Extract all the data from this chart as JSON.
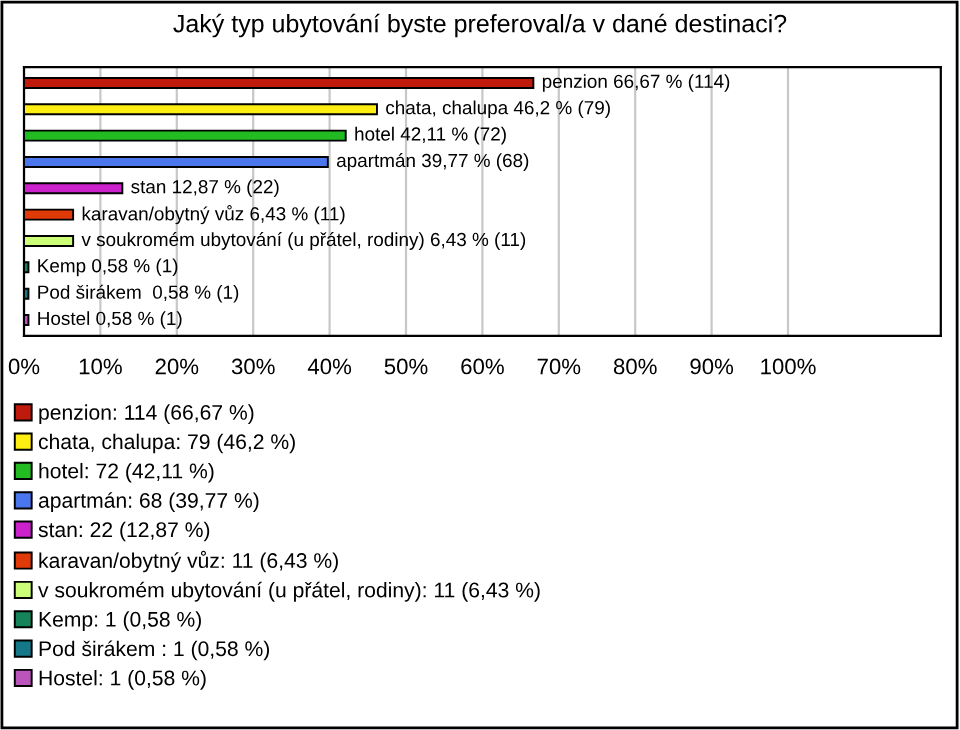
{
  "chart_data": {
    "type": "bar",
    "orientation": "horizontal",
    "title": "Jaký typ ubytování byste preferoval/a v dané destinaci?",
    "categories": [
      null,
      null,
      null,
      null,
      null,
      null,
      null,
      null,
      null,
      null
    ],
    "series": [
      {
        "name": "penzion: 114 (66,67 %)",
        "color": "#c01a0c",
        "values": [
          66.67,
          null,
          null,
          null,
          null,
          null,
          null,
          null,
          null,
          null
        ],
        "value_labels": [
          "penzion 66,67 % (114)",
          null,
          null,
          null,
          null,
          null,
          null,
          null,
          null,
          null
        ]
      },
      {
        "name": "chata, chalupa: 79 (46,2 %)",
        "color": "#ffee11",
        "values": [
          null,
          46.2,
          null,
          null,
          null,
          null,
          null,
          null,
          null,
          null
        ],
        "value_labels": [
          null,
          "chata, chalupa 46,2 % (79)",
          null,
          null,
          null,
          null,
          null,
          null,
          null,
          null
        ]
      },
      {
        "name": "hotel: 72 (42,11 %)",
        "color": "#22bb22",
        "values": [
          null,
          null,
          42.11,
          null,
          null,
          null,
          null,
          null,
          null,
          null
        ],
        "value_labels": [
          null,
          null,
          "hotel 42,11 % (72)",
          null,
          null,
          null,
          null,
          null,
          null,
          null
        ]
      },
      {
        "name": "apartmán: 68 (39,77 %)",
        "color": "#4a76ee",
        "values": [
          null,
          null,
          null,
          39.77,
          null,
          null,
          null,
          null,
          null,
          null
        ],
        "value_labels": [
          null,
          null,
          null,
          "apartmán 39,77 % (68)",
          null,
          null,
          null,
          null,
          null,
          null
        ]
      },
      {
        "name": "stan: 22 (12,87 %)",
        "color": "#cc22cc",
        "values": [
          null,
          null,
          null,
          null,
          12.87,
          null,
          null,
          null,
          null,
          null
        ],
        "value_labels": [
          null,
          null,
          null,
          null,
          "stan 12,87 % (22)",
          null,
          null,
          null,
          null,
          null
        ]
      },
      {
        "name": "karavan/obytný vůz: 11 (6,43 %)",
        "color": "#e03a08",
        "values": [
          null,
          null,
          null,
          null,
          null,
          6.43,
          null,
          null,
          null,
          null
        ],
        "value_labels": [
          null,
          null,
          null,
          null,
          null,
          "karavan/obytný vůz 6,43 % (11)",
          null,
          null,
          null,
          null
        ]
      },
      {
        "name": "v soukromém ubytování (u přátel, rodiny): 11 (6,43 %)",
        "color": "#ccff77",
        "values": [
          null,
          null,
          null,
          null,
          null,
          null,
          6.43,
          null,
          null,
          null
        ],
        "value_labels": [
          null,
          null,
          null,
          null,
          null,
          null,
          "v soukromém ubytování (u přátel, rodiny) 6,43 % (11)",
          null,
          null,
          null
        ]
      },
      {
        "name": "Kemp: 1 (0,58 %)",
        "color": "#15845a",
        "values": [
          null,
          null,
          null,
          null,
          null,
          null,
          null,
          0.58,
          null,
          null
        ],
        "value_labels": [
          null,
          null,
          null,
          null,
          null,
          null,
          null,
          "Kemp 0,58 % (1)",
          null,
          null
        ]
      },
      {
        "name": "Pod širákem : 1 (0,58 %)",
        "color": "#157888",
        "values": [
          null,
          null,
          null,
          null,
          null,
          null,
          null,
          null,
          0.58,
          null
        ],
        "value_labels": [
          null,
          null,
          null,
          null,
          null,
          null,
          null,
          null,
          "Pod širákem  0,58 % (1)",
          null
        ]
      },
      {
        "name": "Hostel: 1 (0,58 %)",
        "color": "#bb55bb",
        "values": [
          null,
          null,
          null,
          null,
          null,
          null,
          null,
          null,
          null,
          0.58
        ],
        "value_labels": [
          null,
          null,
          null,
          null,
          null,
          null,
          null,
          null,
          null,
          "Hostel 0,58 % (1)"
        ]
      }
    ],
    "xlim": [
      0,
      120
    ],
    "xticks": [
      {
        "value": 0,
        "label": "0%"
      },
      {
        "value": 10,
        "label": "10%"
      },
      {
        "value": 20,
        "label": "20%"
      },
      {
        "value": 30,
        "label": "30%"
      },
      {
        "value": 40,
        "label": "40%"
      },
      {
        "value": 50,
        "label": "50%"
      },
      {
        "value": 60,
        "label": "60%"
      },
      {
        "value": 70,
        "label": "70%"
      },
      {
        "value": 80,
        "label": "80%"
      },
      {
        "value": 90,
        "label": "90%"
      },
      {
        "value": 100,
        "label": "100%"
      }
    ],
    "grid": "x",
    "legend": "bottom"
  }
}
